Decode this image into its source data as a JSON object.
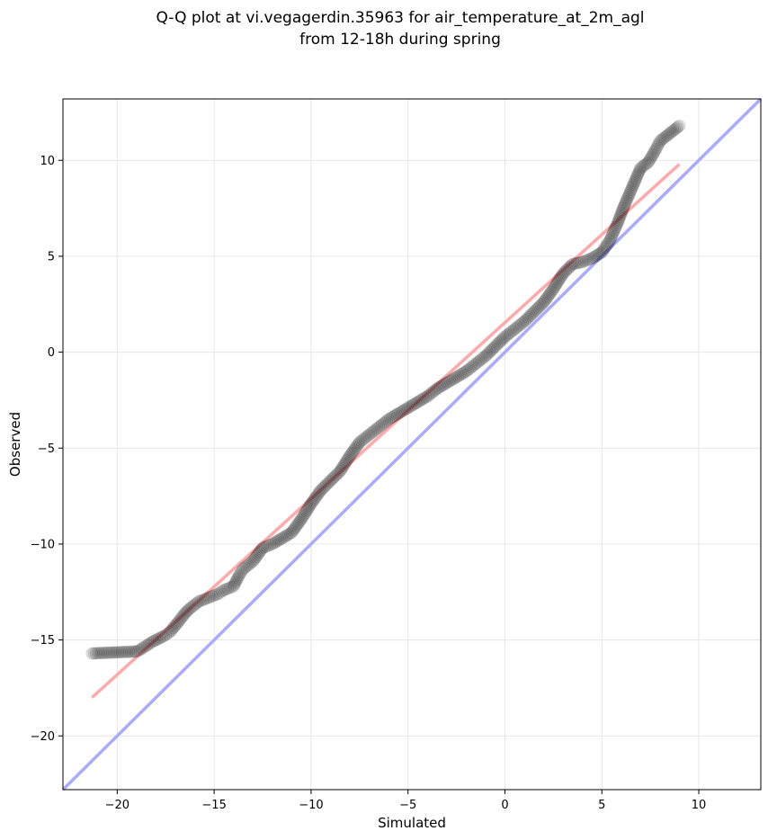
{
  "chart_data": {
    "type": "scatter",
    "title": "Q-Q plot at vi.vegagerdin.35963 for air_temperature_at_2m_agl",
    "subtitle": "from 12-18h during spring",
    "xlabel": "Simulated",
    "ylabel": "Observed",
    "xlim": [
      -22.8,
      13.2
    ],
    "ylim": [
      -22.8,
      13.2
    ],
    "xticks": [
      -20,
      -15,
      -10,
      -5,
      0,
      5,
      10
    ],
    "yticks": [
      -20,
      -15,
      -10,
      -5,
      0,
      5,
      10
    ],
    "xtick_labels": [
      "−20",
      "−15",
      "−10",
      "−5",
      "0",
      "5",
      "10"
    ],
    "ytick_labels": [
      "−20",
      "−15",
      "−10",
      "−5",
      "0",
      "5",
      "10"
    ],
    "grid": true,
    "colors": {
      "points": "#000000",
      "identity_line": "#aaaaff",
      "fit_line": "#ffaaaa"
    },
    "quantiles": {
      "x": [
        -21.3,
        -19.0,
        -18.8,
        -18.2,
        -17.6,
        -17.3,
        -16.8,
        -16.5,
        -16.3,
        -15.8,
        -15.3,
        -14.8,
        -14.5,
        -14.0,
        -13.7,
        -13.5,
        -13.0,
        -12.5,
        -12.0,
        -11.5,
        -11.0,
        -10.5,
        -10.0,
        -9.5,
        -9.0,
        -8.5,
        -8.0,
        -7.5,
        -7.0,
        -6.5,
        -6.0,
        -5.5,
        -5.0,
        -4.5,
        -4.0,
        -3.5,
        -3.0,
        -2.5,
        -2.0,
        -1.5,
        -1.0,
        -0.5,
        0.0,
        0.5,
        1.0,
        1.5,
        2.0,
        2.5,
        3.0,
        3.5,
        4.0,
        4.5,
        5.0,
        5.4,
        5.8,
        6.1,
        6.4,
        6.7,
        7.0,
        7.4,
        7.8,
        8.0,
        9.0
      ],
      "y": [
        -15.7,
        -15.6,
        -15.5,
        -15.1,
        -14.8,
        -14.6,
        -14.0,
        -13.6,
        -13.4,
        -13.0,
        -12.8,
        -12.6,
        -12.4,
        -12.2,
        -11.6,
        -11.3,
        -10.9,
        -10.2,
        -10.0,
        -9.7,
        -9.4,
        -8.7,
        -7.9,
        -7.2,
        -6.7,
        -6.2,
        -5.4,
        -4.7,
        -4.3,
        -3.9,
        -3.5,
        -3.2,
        -2.9,
        -2.6,
        -2.3,
        -1.9,
        -1.6,
        -1.3,
        -1.0,
        -0.6,
        -0.2,
        0.3,
        0.8,
        1.2,
        1.6,
        2.1,
        2.6,
        3.3,
        4.1,
        4.6,
        4.7,
        4.9,
        5.2,
        5.8,
        6.7,
        7.5,
        8.2,
        8.9,
        9.6,
        9.9,
        10.6,
        11.0,
        11.8
      ]
    },
    "identity_line": {
      "x": [
        -22.8,
        13.2
      ],
      "y": [
        -22.8,
        13.2
      ]
    },
    "fit_line": {
      "x": [
        -21.3,
        9.0
      ],
      "y": [
        -18.0,
        9.8
      ]
    }
  }
}
